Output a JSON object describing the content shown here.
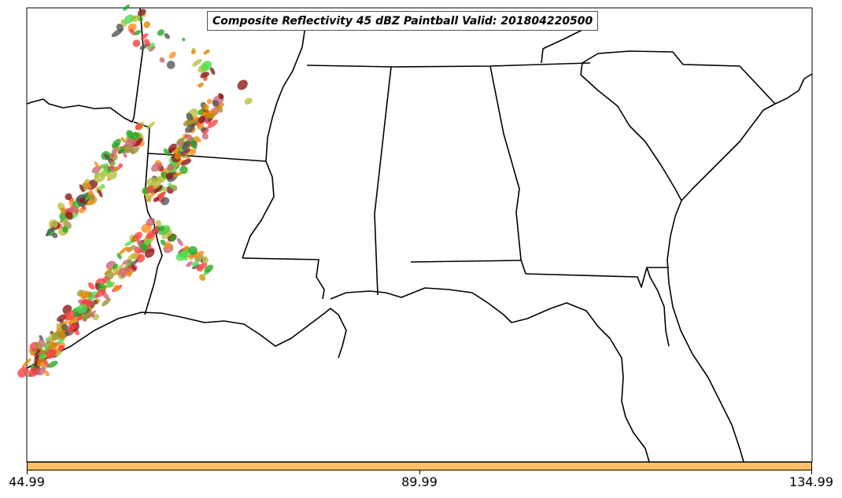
{
  "title": "Composite Reflectivity 45 dBZ Paintball Valid: 201804220500",
  "colorbar": {
    "color": "#ffc266",
    "ticks": [
      "44.99",
      "89.99",
      "134.99"
    ]
  },
  "colors": {
    "paintball": [
      "#ff4040",
      "#ff8c1a",
      "#e08800",
      "#4ddd4d",
      "#22aa22",
      "#8b1a1a",
      "#999933",
      "#b8c040",
      "#555555",
      "#cc6677"
    ],
    "boundary": "#000000"
  }
}
